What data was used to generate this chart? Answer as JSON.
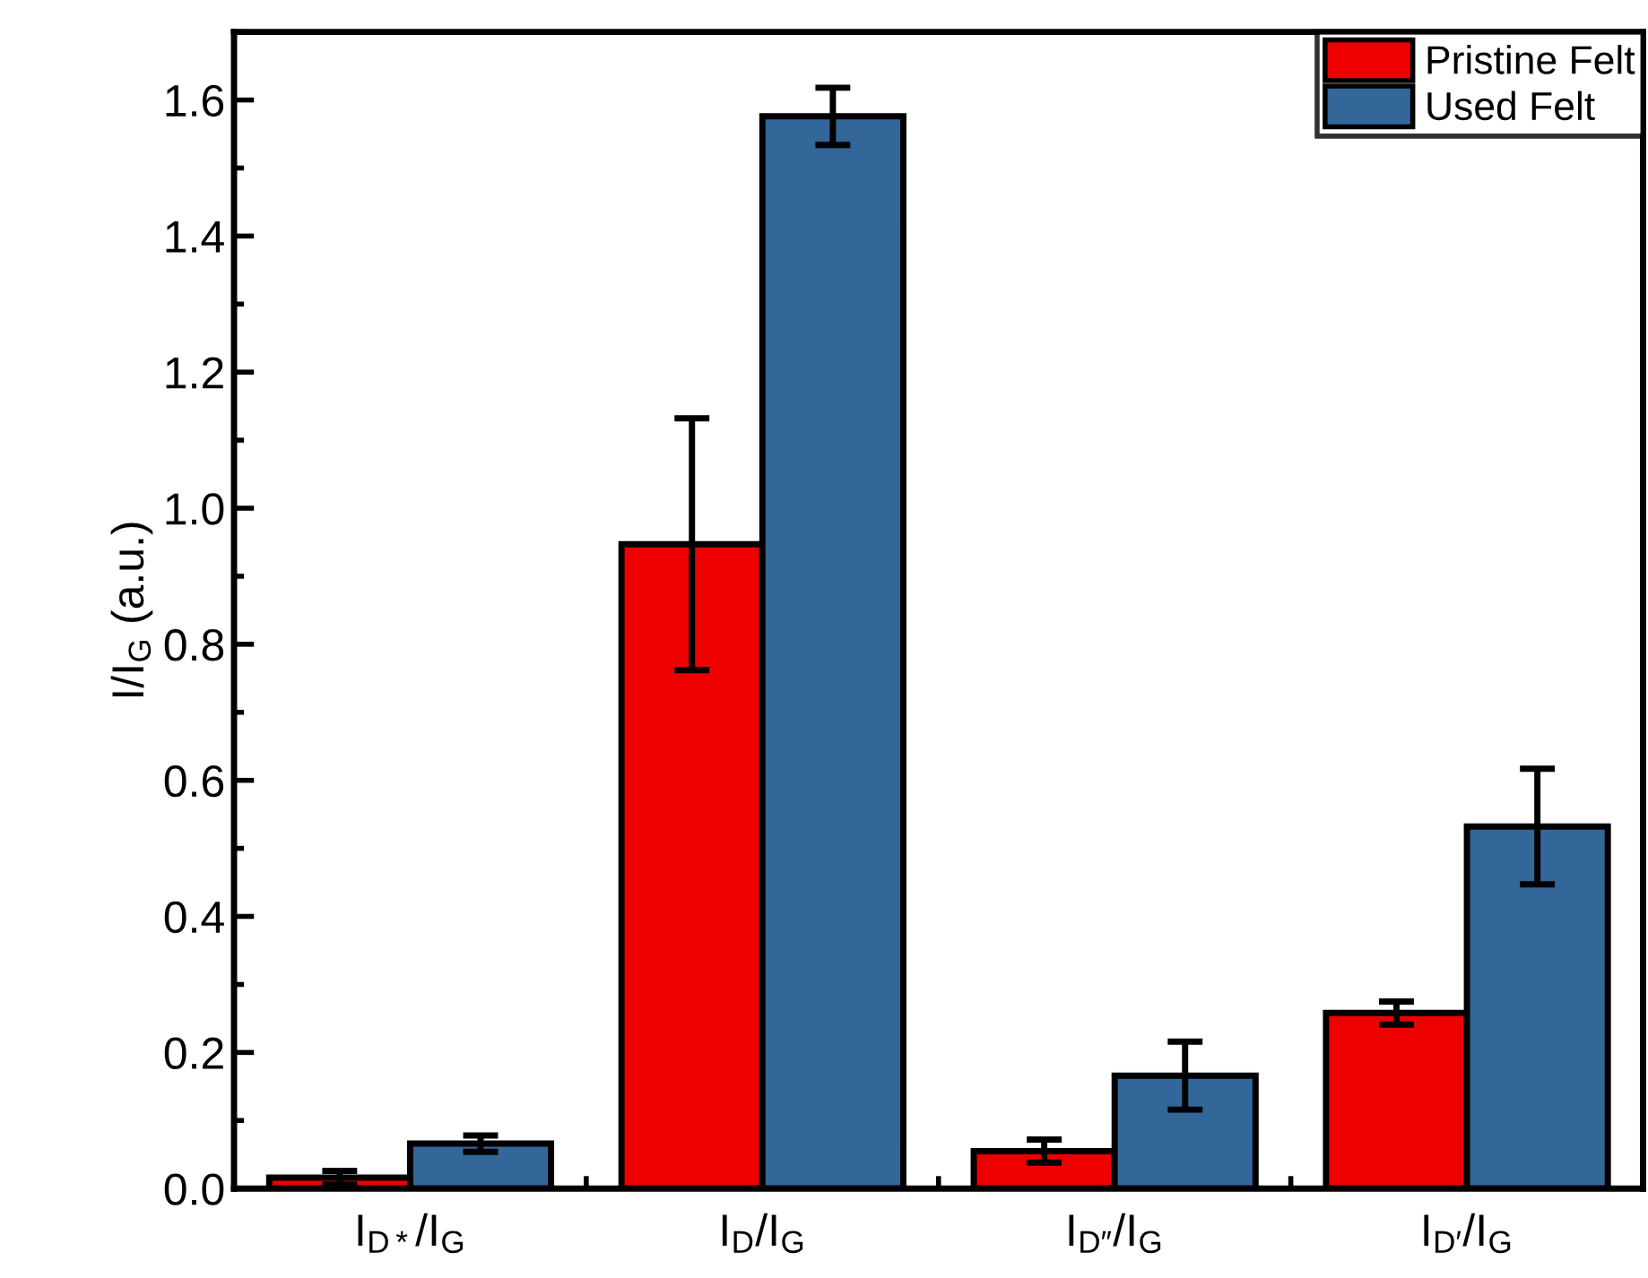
{
  "chart_data": {
    "type": "bar",
    "ylabel": "I/I$_{G}$ (a.u.)",
    "categories": [
      "I$_{D*}$/I$_{G}$",
      "I$_{D}$/I$_{G}$",
      "I$_{D″}$/I$_{G}$",
      "I$_{D′}$/I$_{G}$"
    ],
    "series": [
      {
        "name": "Pristine Felt",
        "color": "#ee0000",
        "values": [
          0.016,
          0.947,
          0.055,
          0.258
        ],
        "errors": [
          0.01,
          0.185,
          0.017,
          0.017
        ]
      },
      {
        "name": "Used Felt",
        "color": "#336699",
        "values": [
          0.066,
          1.576,
          0.166,
          0.532
        ],
        "errors": [
          0.012,
          0.042,
          0.05,
          0.085
        ]
      }
    ],
    "ylim": [
      0,
      1.7
    ],
    "yticks": [
      {
        "value": 0,
        "label": "0.0"
      },
      {
        "value": 0.2,
        "label": "0.2"
      },
      {
        "value": 0.4,
        "label": "0.4"
      },
      {
        "value": 0.6,
        "label": "0.6"
      },
      {
        "value": 0.8,
        "label": "0.8"
      },
      {
        "value": 1,
        "label": "1.0"
      },
      {
        "value": 1.2,
        "label": "1.2"
      },
      {
        "value": 1.4,
        "label": "1.4"
      },
      {
        "value": 1.6,
        "label": "1.6"
      }
    ],
    "grid": false,
    "legend": "top right"
  }
}
